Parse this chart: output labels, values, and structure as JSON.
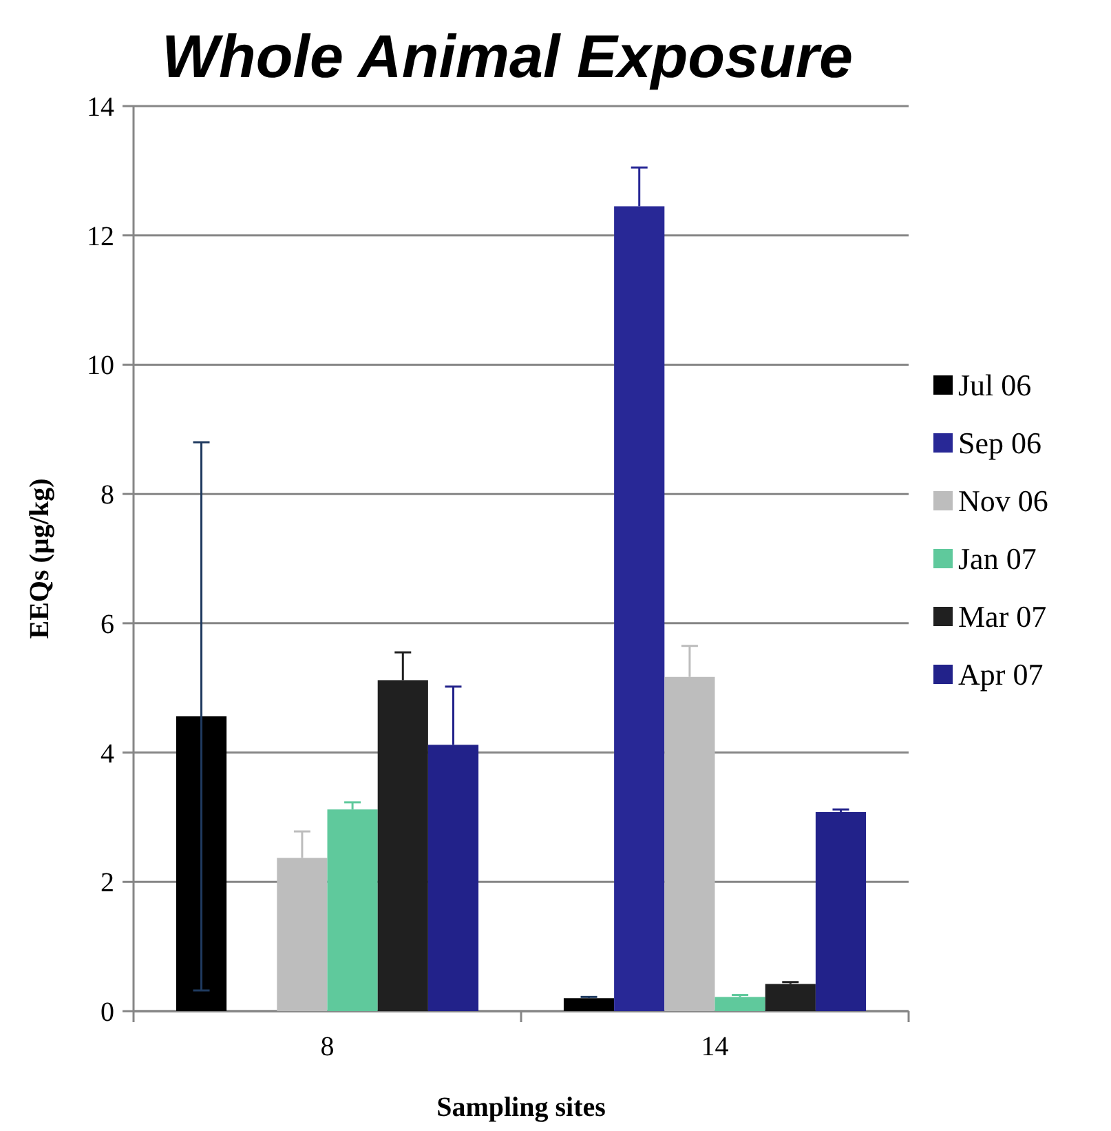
{
  "chart_data": {
    "type": "bar",
    "title": "Whole Animal Exposure",
    "xlabel": "Sampling sites",
    "ylabel": "EEQs (µg/kg)",
    "categories": [
      "8",
      "14"
    ],
    "series": [
      {
        "name": "Jul 06",
        "color": "#000000",
        "values": [
          4.56,
          0.2
        ],
        "errors": [
          [
            0.32,
            8.8
          ],
          [
            0.2,
            0.22
          ]
        ]
      },
      {
        "name": "Sep 06",
        "color": "#282896",
        "values": [
          null,
          12.45
        ],
        "errors": [
          null,
          [
            12.45,
            13.05
          ]
        ]
      },
      {
        "name": "Nov 06",
        "color": "#bdbdbd",
        "values": [
          2.37,
          5.17
        ],
        "errors": [
          [
            2.37,
            2.78
          ],
          [
            5.17,
            5.65
          ]
        ]
      },
      {
        "name": "Jan 07",
        "color": "#5fc99c",
        "values": [
          3.12,
          0.22
        ],
        "errors": [
          [
            3.12,
            3.23
          ],
          [
            0.22,
            0.25
          ]
        ]
      },
      {
        "name": "Mar 07",
        "color": "#202020",
        "values": [
          5.12,
          0.42
        ],
        "errors": [
          [
            5.12,
            5.55
          ],
          [
            0.42,
            0.45
          ]
        ]
      },
      {
        "name": "Apr 07",
        "color": "#22228a",
        "values": [
          4.12,
          3.08
        ],
        "errors": [
          [
            4.12,
            5.02
          ],
          [
            3.08,
            3.12
          ]
        ]
      }
    ],
    "ylim": [
      0,
      14
    ],
    "yticks": [
      0,
      2,
      4,
      6,
      8,
      10,
      12,
      14
    ],
    "grid": "y",
    "legend": "right"
  }
}
